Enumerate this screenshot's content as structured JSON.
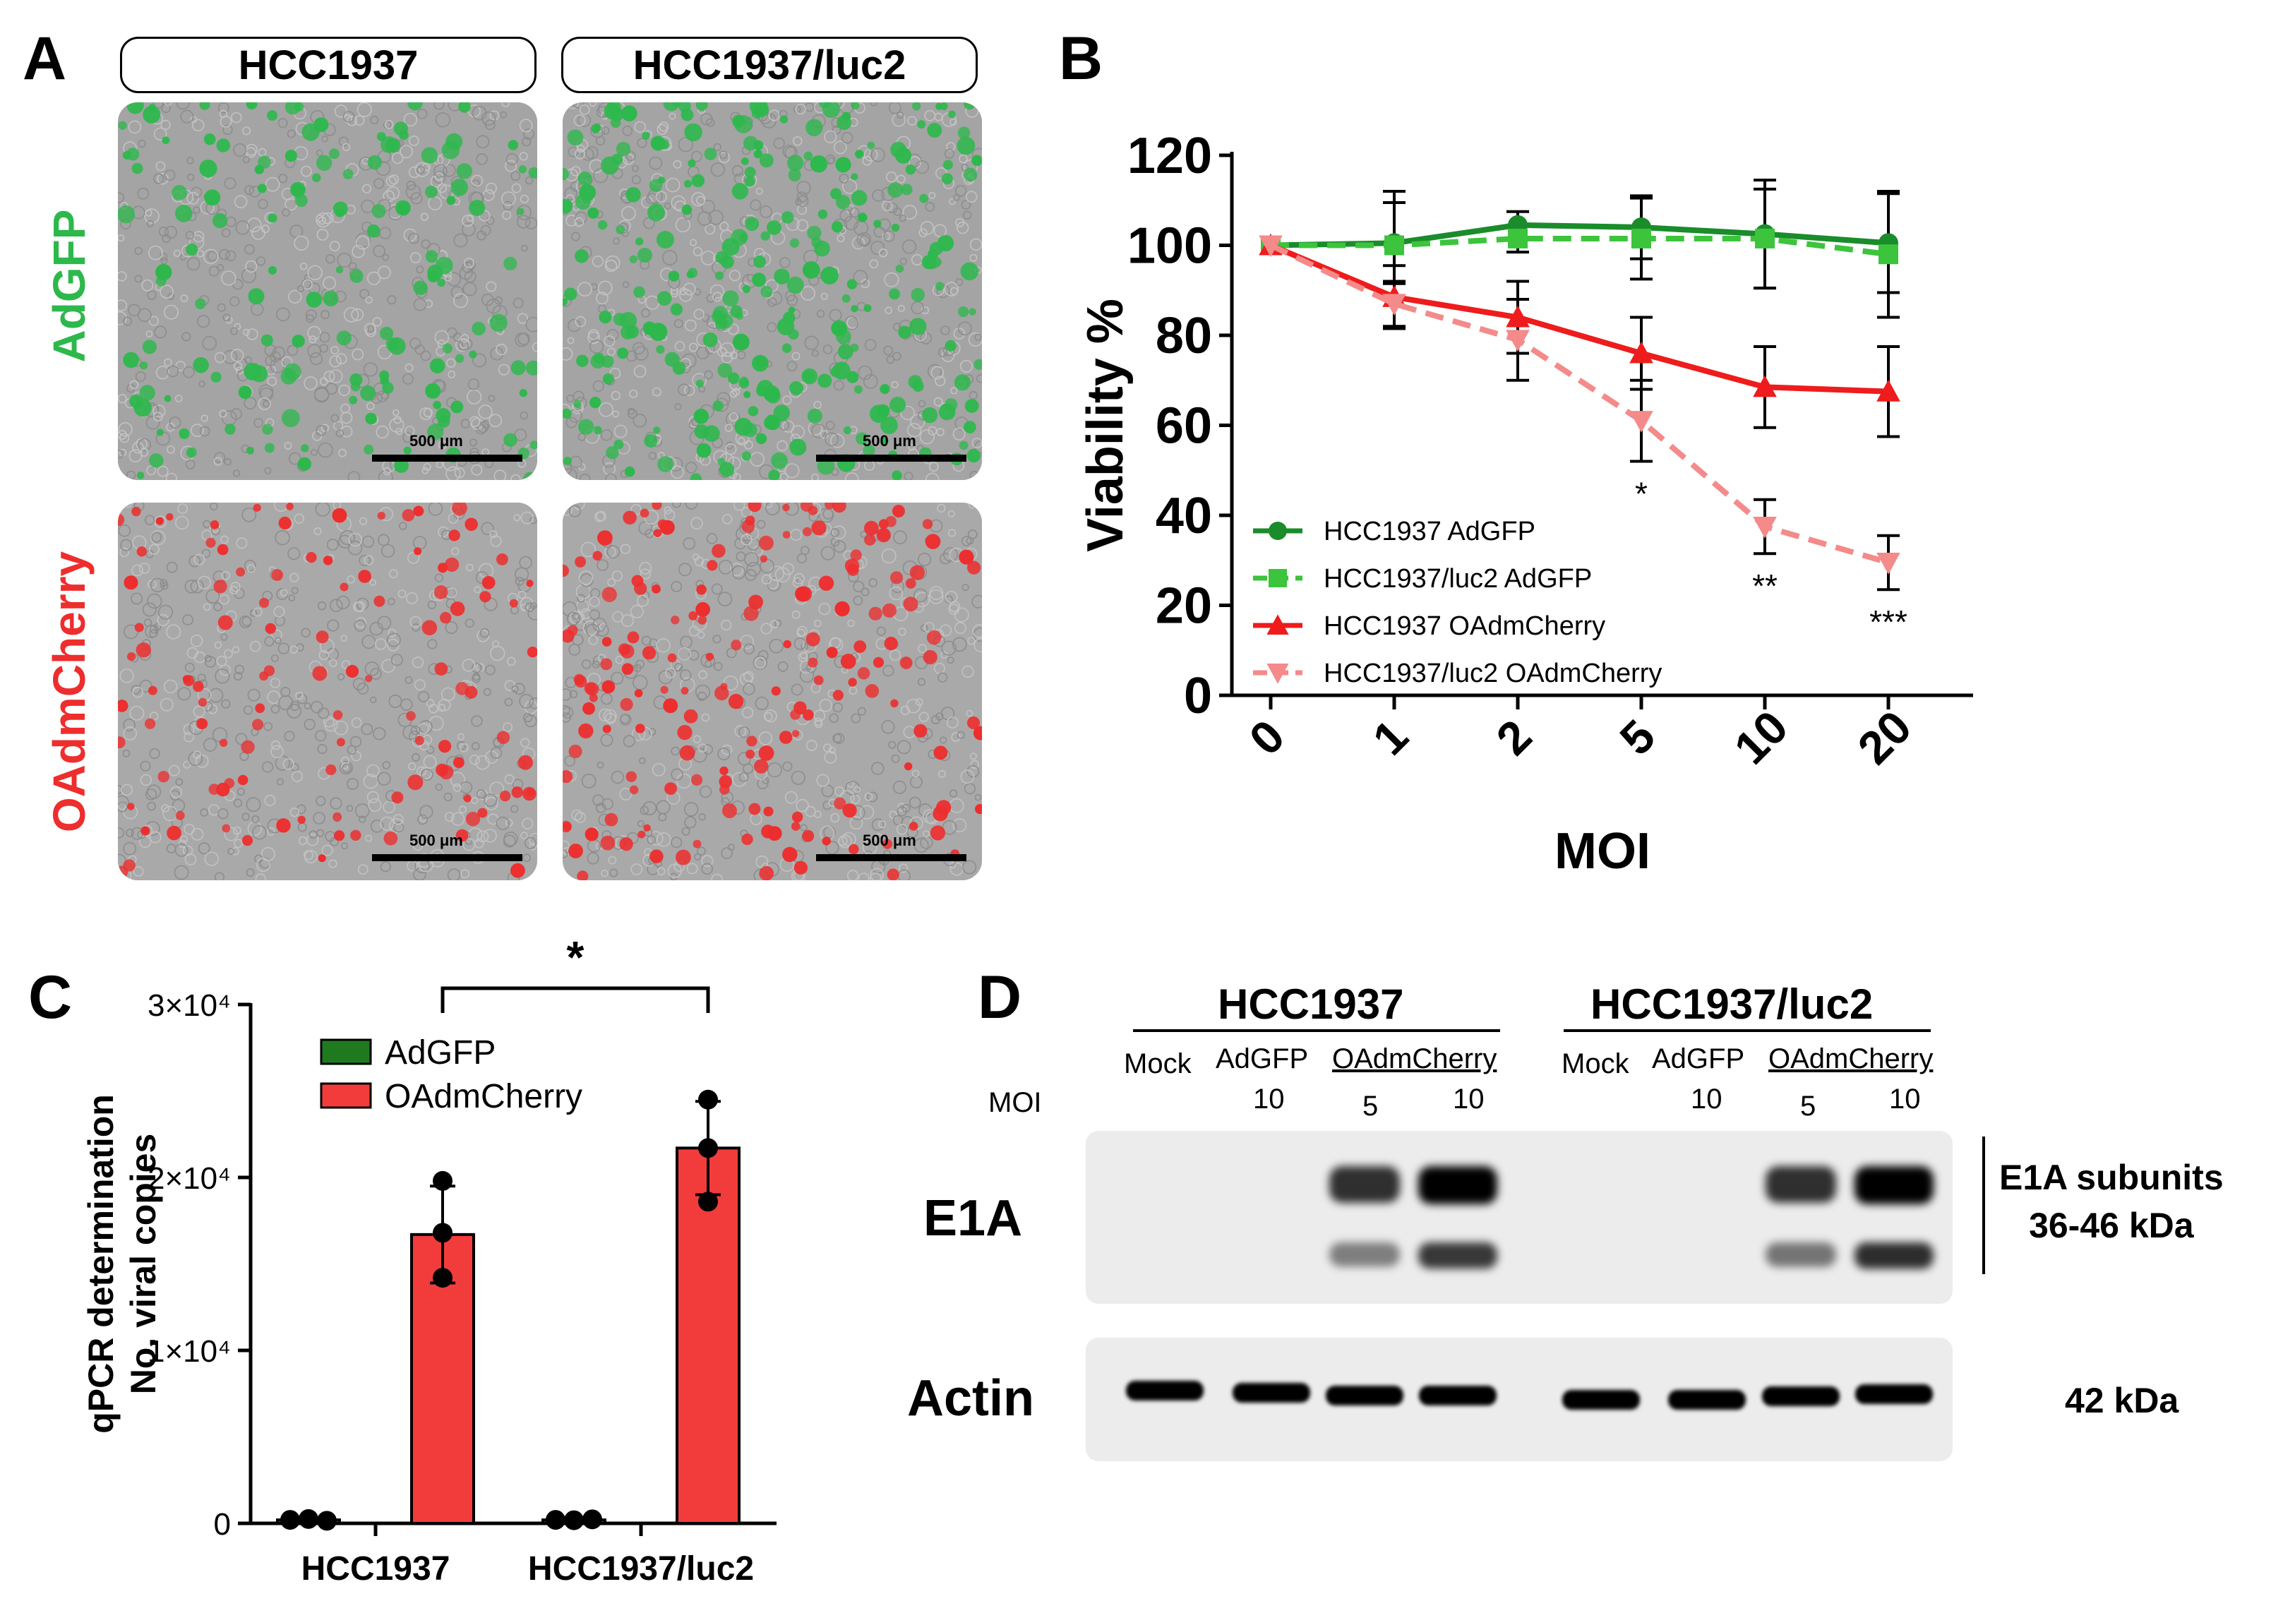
{
  "panel_a": {
    "letter": "A",
    "columns": [
      "HCC1937",
      "HCC1937/luc2"
    ],
    "rows": [
      {
        "label": "AdGFP",
        "color": "#2db84c"
      },
      {
        "label": "OAdmCherry",
        "color": "#ee2d2d"
      }
    ],
    "scale_bar": "500 μm"
  },
  "panel_b": {
    "letter": "B"
  },
  "panel_c": {
    "letter": "C",
    "significance": "*"
  },
  "panel_d": {
    "letter": "D",
    "groups": [
      "HCC1937",
      "HCC1937/luc2"
    ],
    "lanes": [
      "Mock",
      "AdGFP",
      "OAdmCherry",
      "Mock",
      "AdGFP",
      "OAdmCherry"
    ],
    "moi_label": "MOI",
    "moi_values": [
      "10",
      "5",
      "10",
      "10",
      "5",
      "10"
    ],
    "blot_labels": [
      "E1A",
      "Actin"
    ],
    "e1a_note_line1": "E1A subunits",
    "e1a_note_line2": "36-46 kDa",
    "actin_note": "42 kDa"
  },
  "chart_data": [
    {
      "type": "line",
      "panel": "B",
      "xlabel": "MOI",
      "ylabel": "Viability %",
      "categories": [
        "0",
        "1",
        "2",
        "5",
        "10",
        "20"
      ],
      "ylim": [
        0,
        120
      ],
      "yticks": [
        0,
        20,
        40,
        60,
        80,
        100,
        120
      ],
      "legend_position": "bottom-left",
      "series": [
        {
          "name": "HCC1937 AdGFP",
          "color": "#1a8c2b",
          "marker": "circle",
          "dash": false,
          "values": [
            100,
            100.5,
            104.5,
            104,
            102.5,
            100.5
          ],
          "errors": [
            0,
            9,
            3,
            7,
            12,
            11
          ]
        },
        {
          "name": "HCC1937/luc2 AdGFP",
          "color": "#3cc43c",
          "marker": "square",
          "dash": true,
          "values": [
            100,
            100,
            101.5,
            101.5,
            101.5,
            98
          ],
          "errors": [
            0,
            12,
            3,
            9,
            11,
            14
          ]
        },
        {
          "name": "HCC1937 OAdmCherry",
          "color": "#ee1c1c",
          "marker": "triangle-up",
          "dash": false,
          "values": [
            100,
            88.5,
            84,
            76,
            68.5,
            67.5
          ],
          "errors": [
            0,
            7,
            8,
            8,
            9,
            10
          ]
        },
        {
          "name": "HCC1937/luc2 OAdmCherry",
          "color": "#f48a8a",
          "marker": "triangle-down",
          "dash": true,
          "values": [
            100,
            87,
            79,
            61,
            37.5,
            29.5
          ],
          "errors": [
            0,
            5,
            9,
            9,
            6,
            6
          ]
        }
      ],
      "annotations": [
        {
          "x": "5",
          "text": "*"
        },
        {
          "x": "10",
          "text": "**"
        },
        {
          "x": "20",
          "text": "***"
        }
      ]
    },
    {
      "type": "bar",
      "panel": "C",
      "ylabel_line1": "qPCR determination",
      "ylabel_line2": "No. viral copies",
      "categories": [
        "HCC1937",
        "HCC1937/luc2"
      ],
      "ylim": [
        0,
        30000
      ],
      "yticks": [
        {
          "value": 0,
          "label": "0"
        },
        {
          "value": 10000,
          "label": "1×10⁴"
        },
        {
          "value": 20000,
          "label": "2×10⁴"
        },
        {
          "value": 30000,
          "label": "3×10⁴"
        }
      ],
      "legend_position": "top-left",
      "series": [
        {
          "name": "AdGFP",
          "color": "#1f7a1f",
          "values": [
            200,
            200
          ],
          "points": [
            [
              200,
              250,
              150
            ],
            [
              200,
              180,
              230
            ]
          ]
        },
        {
          "name": "OAdmCherry",
          "color": "#f23c3c",
          "values": [
            16700,
            21700
          ],
          "errors": [
            2800,
            2700
          ],
          "points": [
            [
              19800,
              16800,
              14200
            ],
            [
              24500,
              21700,
              18600
            ]
          ]
        }
      ]
    }
  ]
}
